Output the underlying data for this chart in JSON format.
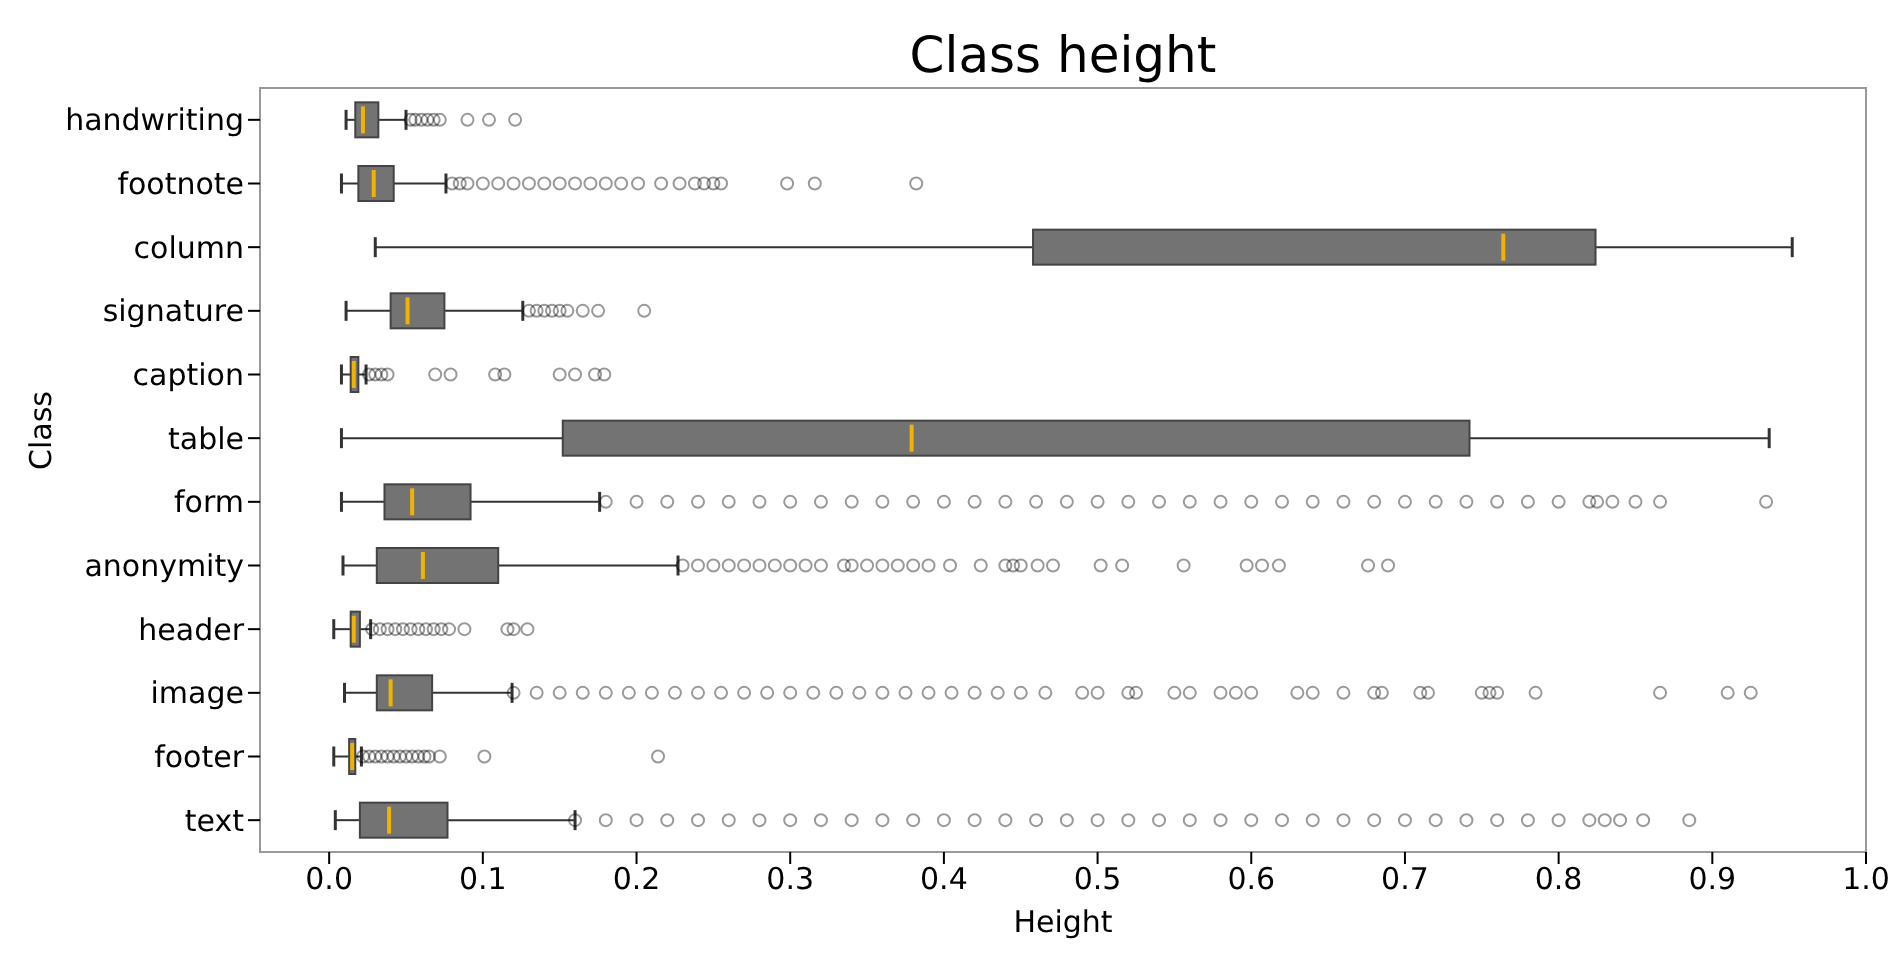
{
  "chart_data": {
    "type": "box",
    "orientation": "horizontal",
    "title": "Class height",
    "xlabel": "Height",
    "ylabel": "Class",
    "color": "#737373",
    "categories": [
      "handwriting",
      "footnote",
      "column",
      "signature",
      "caption",
      "table",
      "form",
      "anonymity",
      "header",
      "image",
      "footer",
      "text"
    ],
    "xlim": [
      -0.045,
      1.0
    ],
    "xticks": [
      {
        "value": 0,
        "label": "0.0"
      },
      0.1,
      0.2,
      0.3,
      0.4,
      0.5,
      0.6,
      0.7,
      0.8,
      0.9,
      {
        "value": 1,
        "label": "1.0"
      }
    ],
    "boxes": [
      {
        "low": 0.011,
        "q1": 0.017,
        "median": 0.022,
        "q3": 0.032,
        "high": 0.05,
        "outliers": [
          0.053,
          0.056,
          0.06,
          0.064,
          0.068,
          0.072,
          0.09,
          0.104,
          0.121
        ]
      },
      {
        "low": 0.008,
        "q1": 0.019,
        "median": 0.029,
        "q3": 0.042,
        "high": 0.076,
        "outliers": [
          0.08,
          0.085,
          0.09,
          0.1,
          0.11,
          0.12,
          0.13,
          0.14,
          0.15,
          0.16,
          0.17,
          0.18,
          0.19,
          0.201,
          0.216,
          0.228,
          0.238,
          0.244,
          0.25,
          0.255,
          0.298,
          0.316,
          0.382
        ]
      },
      {
        "low": 0.03,
        "q1": 0.458,
        "median": 0.764,
        "q3": 0.824,
        "high": 0.952
      },
      {
        "low": 0.011,
        "q1": 0.04,
        "median": 0.051,
        "q3": 0.075,
        "high": 0.126,
        "outliers": [
          0.13,
          0.135,
          0.14,
          0.145,
          0.15,
          0.155,
          0.165,
          0.175,
          0.205
        ]
      },
      {
        "low": 0.008,
        "q1": 0.014,
        "median": 0.016,
        "q3": 0.019,
        "high": 0.024,
        "outliers": [
          0.026,
          0.03,
          0.034,
          0.038,
          0.069,
          0.079,
          0.108,
          0.114,
          0.15,
          0.16,
          0.173,
          0.179
        ]
      },
      {
        "low": 0.008,
        "q1": 0.152,
        "median": 0.379,
        "q3": 0.742,
        "high": 0.937
      },
      {
        "low": 0.008,
        "q1": 0.036,
        "median": 0.054,
        "q3": 0.092,
        "high": 0.176,
        "outliers": [
          0.18,
          0.2,
          0.22,
          0.24,
          0.26,
          0.28,
          0.3,
          0.32,
          0.34,
          0.36,
          0.38,
          0.4,
          0.42,
          0.44,
          0.46,
          0.48,
          0.5,
          0.52,
          0.54,
          0.56,
          0.58,
          0.6,
          0.62,
          0.64,
          0.66,
          0.68,
          0.7,
          0.72,
          0.74,
          0.76,
          0.78,
          0.8,
          0.82,
          0.825,
          0.835,
          0.85,
          0.866,
          0.935
        ]
      },
      {
        "low": 0.009,
        "q1": 0.031,
        "median": 0.061,
        "q3": 0.11,
        "high": 0.227,
        "outliers": [
          0.23,
          0.24,
          0.25,
          0.26,
          0.27,
          0.28,
          0.29,
          0.3,
          0.31,
          0.32,
          0.335,
          0.34,
          0.35,
          0.36,
          0.37,
          0.38,
          0.39,
          0.404,
          0.424,
          0.44,
          0.445,
          0.45,
          0.461,
          0.471,
          0.502,
          0.516,
          0.556,
          0.597,
          0.607,
          0.618,
          0.676,
          0.689
        ]
      },
      {
        "low": 0.003,
        "q1": 0.014,
        "median": 0.016,
        "q3": 0.02,
        "high": 0.027,
        "outliers": [
          0.028,
          0.033,
          0.038,
          0.043,
          0.048,
          0.053,
          0.058,
          0.063,
          0.068,
          0.073,
          0.078,
          0.088,
          0.116,
          0.12,
          0.129
        ]
      },
      {
        "low": 0.01,
        "q1": 0.031,
        "median": 0.04,
        "q3": 0.067,
        "high": 0.119,
        "outliers": [
          0.12,
          0.135,
          0.15,
          0.165,
          0.18,
          0.195,
          0.21,
          0.225,
          0.24,
          0.255,
          0.27,
          0.285,
          0.3,
          0.315,
          0.33,
          0.345,
          0.36,
          0.375,
          0.39,
          0.405,
          0.42,
          0.435,
          0.45,
          0.466,
          0.49,
          0.5,
          0.52,
          0.525,
          0.55,
          0.56,
          0.58,
          0.59,
          0.6,
          0.63,
          0.64,
          0.66,
          0.68,
          0.685,
          0.71,
          0.715,
          0.75,
          0.755,
          0.76,
          0.785,
          0.866,
          0.91,
          0.925
        ]
      },
      {
        "low": 0.003,
        "q1": 0.013,
        "median": 0.015,
        "q3": 0.017,
        "high": 0.021,
        "outliers": [
          0.022,
          0.026,
          0.03,
          0.034,
          0.038,
          0.042,
          0.046,
          0.05,
          0.054,
          0.058,
          0.062,
          0.065,
          0.072,
          0.101,
          0.214
        ]
      },
      {
        "low": 0.004,
        "q1": 0.02,
        "median": 0.039,
        "q3": 0.077,
        "high": 0.16,
        "outliers": [
          0.16,
          0.18,
          0.2,
          0.22,
          0.24,
          0.26,
          0.28,
          0.3,
          0.32,
          0.34,
          0.36,
          0.38,
          0.4,
          0.42,
          0.44,
          0.46,
          0.48,
          0.5,
          0.52,
          0.54,
          0.56,
          0.58,
          0.6,
          0.62,
          0.64,
          0.66,
          0.68,
          0.7,
          0.72,
          0.74,
          0.76,
          0.78,
          0.8,
          0.82,
          0.83,
          0.84,
          0.855,
          0.885
        ]
      }
    ]
  }
}
